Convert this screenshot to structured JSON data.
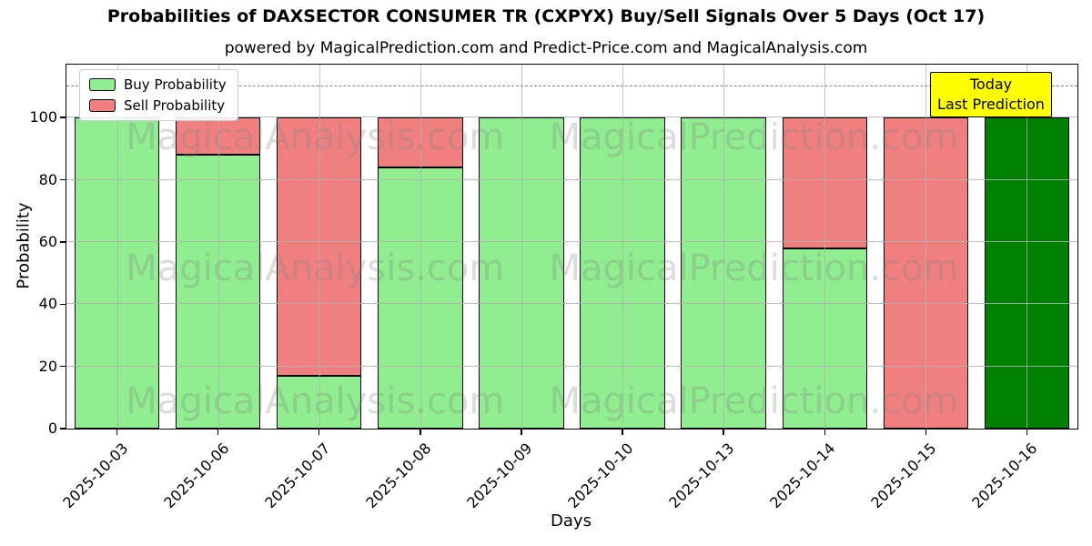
{
  "header": {
    "title": "Probabilities of DAXSECTOR CONSUMER TR (CXPYX) Buy/Sell Signals Over 5 Days (Oct 17)",
    "subtitle": "powered by MagicalPrediction.com and Predict-Price.com and MagicalAnalysis.com"
  },
  "legend": {
    "buy_label": "Buy Probability",
    "sell_label": "Sell Probability"
  },
  "annotation": {
    "line1": "Today",
    "line2": "Last Prediction"
  },
  "watermarks": {
    "left": "MagicalAnalysis.com",
    "right": "MagicalPrediction.com"
  },
  "colors": {
    "buy": "#90EE90",
    "sell": "#F08080",
    "today_bar": "#008000",
    "annotation_bg": "#FFFF00",
    "grid": "#b0b0b0",
    "dashed_line": "#7f7f7f",
    "bar_edge": "#000000"
  },
  "chart_data": {
    "type": "bar",
    "stacked": true,
    "title": "Probabilities of DAXSECTOR CONSUMER TR (CXPYX) Buy/Sell Signals Over 5 Days (Oct 17)",
    "subtitle": "powered by MagicalPrediction.com and Predict-Price.com and MagicalAnalysis.com",
    "categories": [
      "2025-10-03",
      "2025-10-06",
      "2025-10-07",
      "2025-10-08",
      "2025-10-09",
      "2025-10-10",
      "2025-10-13",
      "2025-10-14",
      "2025-10-15",
      "2025-10-16"
    ],
    "series": [
      {
        "name": "Buy Probability",
        "color": "#90EE90",
        "values": [
          100,
          88,
          17,
          84,
          100,
          100,
          100,
          58,
          0,
          100
        ]
      },
      {
        "name": "Sell Probability",
        "color": "#F08080",
        "values": [
          0,
          12,
          83,
          16,
          0,
          0,
          0,
          42,
          100,
          0
        ]
      }
    ],
    "today_index": 9,
    "today_color": "#008000",
    "xlabel": "Days",
    "ylabel": "Probability",
    "ylim": [
      0,
      117
    ],
    "yticks": [
      0,
      20,
      40,
      60,
      80,
      100
    ],
    "dashed_line_y": 110,
    "grid": true,
    "legend_position": "upper left",
    "bar_width_fraction": 0.84
  }
}
